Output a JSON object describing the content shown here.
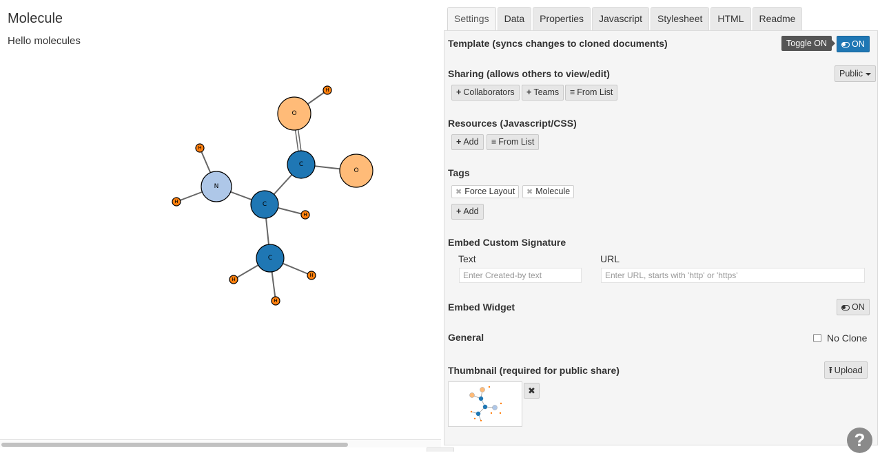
{
  "preview": {
    "title": "Molecule",
    "subtitle": "Hello molecules",
    "atoms": [
      "O",
      "O",
      "C",
      "N",
      "C",
      "C",
      "H",
      "H",
      "H",
      "H",
      "H",
      "H",
      "H",
      "H"
    ]
  },
  "tabs": [
    {
      "label": "Settings",
      "active": true
    },
    {
      "label": "Data"
    },
    {
      "label": "Properties"
    },
    {
      "label": "Javascript"
    },
    {
      "label": "Stylesheet"
    },
    {
      "label": "HTML"
    },
    {
      "label": "Readme"
    }
  ],
  "settings": {
    "template": {
      "label": "Template (syncs changes to cloned documents)",
      "tooltip": "Toggle ON",
      "toggle_label": "ON"
    },
    "sharing": {
      "label": "Sharing (allows others to view/edit)",
      "visibility": "Public",
      "buttons": [
        {
          "icon": "+",
          "label": "Collaborators"
        },
        {
          "icon": "+",
          "label": "Teams"
        },
        {
          "icon": "≡",
          "label": "From List"
        }
      ]
    },
    "resources": {
      "label": "Resources (Javascript/CSS)",
      "buttons": [
        {
          "icon": "+",
          "label": "Add"
        },
        {
          "icon": "≡",
          "label": "From List"
        }
      ]
    },
    "tags": {
      "label": "Tags",
      "items": [
        "Force Layout",
        "Molecule"
      ],
      "add_label": "Add",
      "add_icon": "+"
    },
    "signature": {
      "label": "Embed Custom Signature",
      "text_label": "Text",
      "text_placeholder": "Enter Created-by text",
      "url_label": "URL",
      "url_placeholder": "Enter URL, starts with 'http' or 'https'"
    },
    "embed_widget": {
      "label": "Embed Widget",
      "toggle_label": "ON"
    },
    "general": {
      "label": "General",
      "no_clone_label": "No Clone"
    },
    "thumbnail": {
      "label": "Thumbnail (required for public share)",
      "upload_label": "Upload",
      "remove_icon": "✖"
    }
  },
  "help": {
    "icon": "?"
  },
  "colors": {
    "accent": "#1f77b4",
    "carbon": "#1f77b4",
    "oxygen": "#ffbb78",
    "nitrogen": "#aec7e8",
    "hydrogen": "#ff7f0e"
  }
}
